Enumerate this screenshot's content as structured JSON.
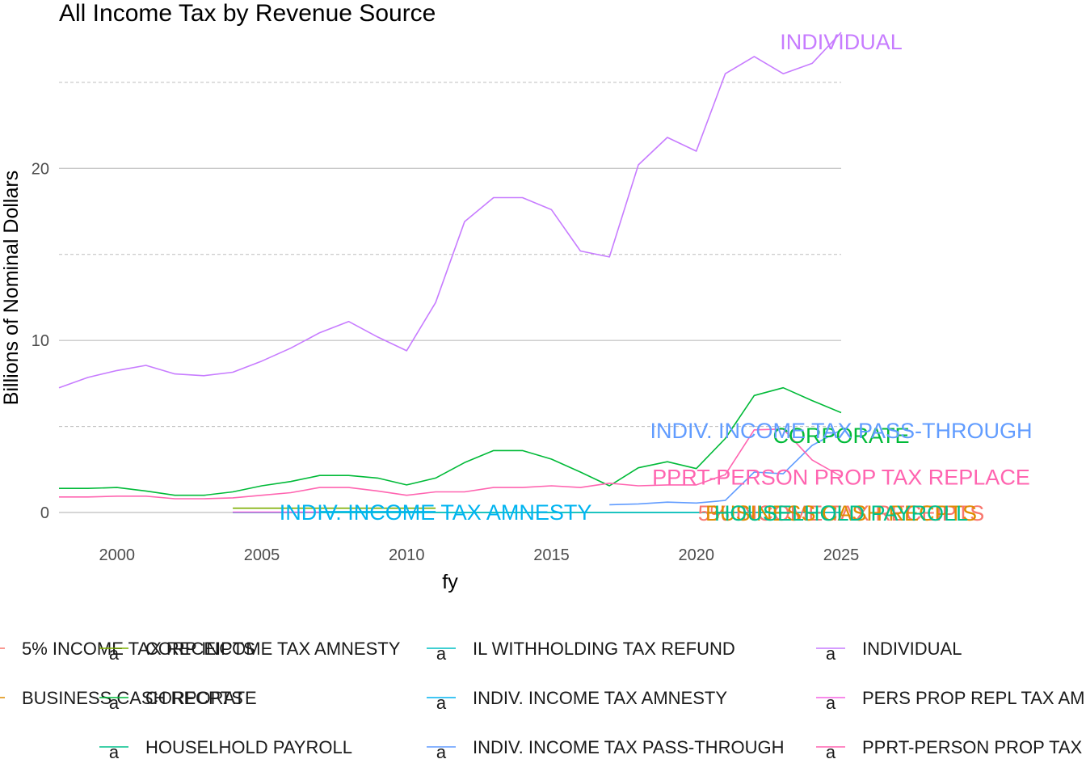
{
  "chart_data": {
    "type": "line",
    "title": "All Income Tax by Revenue Source",
    "xlabel": "fy",
    "ylabel": "Billions of Nominal Dollars",
    "xlim": [
      1998,
      2025
    ],
    "ylim": [
      0,
      28
    ],
    "x_ticks": [
      2000,
      2005,
      2010,
      2015,
      2020,
      2025
    ],
    "y_ticks": [
      0,
      10,
      20
    ],
    "grid": true,
    "legend_position": "bottom",
    "series": [
      {
        "name": "5% INCOME TAX RECEIPTS",
        "color": "#F8766D",
        "x": [],
        "y": []
      },
      {
        "name": "BUSINESS CASH RECPTS",
        "color": "#DE8C00",
        "x": [],
        "y": []
      },
      {
        "name": "CORP INCOME TAX AMNESTY",
        "color": "#7CAE00",
        "x": [
          2004,
          2011
        ],
        "y": [
          0.25,
          0.25
        ]
      },
      {
        "name": "CORPORATE",
        "color": "#00BA38",
        "x": [
          1998,
          1999,
          2000,
          2001,
          2002,
          2003,
          2004,
          2005,
          2006,
          2007,
          2008,
          2009,
          2010,
          2011,
          2012,
          2013,
          2014,
          2015,
          2016,
          2017,
          2018,
          2019,
          2020,
          2021,
          2022,
          2023,
          2024,
          2025
        ],
        "y": [
          1.4,
          1.4,
          1.45,
          1.25,
          1.0,
          1.0,
          1.2,
          1.55,
          1.8,
          2.15,
          2.15,
          2.0,
          1.6,
          2.0,
          2.9,
          3.6,
          3.6,
          3.1,
          2.35,
          1.55,
          2.6,
          2.95,
          2.55,
          4.3,
          6.8,
          7.25,
          6.5,
          5.8
        ]
      },
      {
        "name": "HOUSELHOLD PAYROLL",
        "color": "#00C08B",
        "x": [
          2004,
          2025
        ],
        "y": [
          0.0,
          0.0
        ]
      },
      {
        "name": "IL WITHHOLDING TAX REFUND",
        "color": "#00BFC4",
        "x": [
          2004,
          2025
        ],
        "y": [
          0.0,
          0.0
        ]
      },
      {
        "name": "INDIV. INCOME TAX AMNESTY",
        "color": "#00B4F0",
        "x": [
          2007,
          2011
        ],
        "y": [
          0.05,
          0.05
        ]
      },
      {
        "name": "INDIV. INCOME TAX PASS-THROUGH",
        "color": "#619CFF",
        "x": [
          2017,
          2018,
          2019,
          2020,
          2021,
          2022,
          2023,
          2024,
          2025
        ],
        "y": [
          0.45,
          0.5,
          0.6,
          0.55,
          0.7,
          2.35,
          2.25,
          3.9,
          4.8
        ]
      },
      {
        "name": "INDIVIDUAL",
        "color": "#C77CFF",
        "x": [
          1998,
          1999,
          2000,
          2001,
          2002,
          2003,
          2004,
          2005,
          2006,
          2007,
          2008,
          2009,
          2010,
          2011,
          2012,
          2013,
          2014,
          2015,
          2016,
          2017,
          2018,
          2019,
          2020,
          2021,
          2022,
          2023,
          2024,
          2025
        ],
        "y": [
          7.25,
          7.85,
          8.25,
          8.55,
          8.05,
          7.95,
          8.15,
          8.8,
          9.55,
          10.45,
          11.1,
          10.2,
          9.4,
          12.2,
          16.9,
          18.3,
          18.3,
          17.6,
          15.2,
          14.85,
          20.2,
          21.8,
          21.0,
          25.5,
          26.5,
          25.5,
          26.1,
          27.9
        ]
      },
      {
        "name": "PERS PROP REPL TAX AMNESTY",
        "color": "#F564E3",
        "x": [
          2004,
          2007
        ],
        "y": [
          0.02,
          0.02
        ]
      },
      {
        "name": "PPRT-PERSON PROP TAX REPLACE",
        "color": "#FF64B0",
        "x": [
          1998,
          1999,
          2000,
          2001,
          2002,
          2003,
          2004,
          2005,
          2006,
          2007,
          2008,
          2009,
          2010,
          2011,
          2012,
          2013,
          2014,
          2015,
          2016,
          2017,
          2018,
          2019,
          2020,
          2021,
          2022,
          2023,
          2024,
          2025
        ],
        "y": [
          0.9,
          0.9,
          0.95,
          0.95,
          0.8,
          0.8,
          0.85,
          1.0,
          1.15,
          1.45,
          1.45,
          1.25,
          1.0,
          1.2,
          1.2,
          1.45,
          1.45,
          1.55,
          1.45,
          1.7,
          1.55,
          1.6,
          1.6,
          2.2,
          4.8,
          4.85,
          3.05,
          2.1
        ]
      }
    ],
    "end_labels": [
      {
        "text": "INDIVIDUAL",
        "series": "INDIVIDUAL",
        "color": "#C77CFF"
      },
      {
        "text": "CORPORATE",
        "series": "CORPORATE",
        "color": "#00BA38"
      },
      {
        "text": "INDIV. INCOME TAX PASS-THROUGH",
        "series": "INDIV. INCOME TAX PASS-THROUGH",
        "color": "#619CFF"
      },
      {
        "text": "PPRT-PERSON PROP TAX REPLACE",
        "series": "PPRT-PERSON PROP TAX REPLACE",
        "color": "#FF64B0"
      },
      {
        "text": "5% INCOME TAX RECEIPTS",
        "series": "5% INCOME TAX RECEIPTS",
        "color": "#F8766D"
      },
      {
        "text": "BUSINESS CASH RECPTS",
        "series": "BUSINESS CASH RECPTS",
        "color": "#DE8C00"
      },
      {
        "text": "INDIV. INCOME TAX AMNESTY",
        "series": "INDIV. INCOME TAX AMNESTY",
        "color": "#00B4F0"
      },
      {
        "text": "HOUSELHOLD PAYROLL",
        "series": "HOUSELHOLD PAYROLL",
        "color": "#00C08B"
      }
    ],
    "legend": {
      "key_glyph": "a",
      "columns": [
        [
          "5% INCOME TAX RECEIPTS",
          "BUSINESS CASH RECPTS"
        ],
        [
          "CORP INCOME TAX AMNESTY",
          "CORPORATE",
          "HOUSELHOLD PAYROLL"
        ],
        [
          "IL WITHHOLDING TAX REFUND",
          "INDIV. INCOME TAX AMNESTY",
          "INDIV. INCOME TAX PASS-THROUGH"
        ],
        [
          "INDIVIDUAL",
          "PERS PROP REPL TAX AMNESTY",
          "PPRT-PERSON PROP TAX REPLACE"
        ]
      ]
    }
  }
}
